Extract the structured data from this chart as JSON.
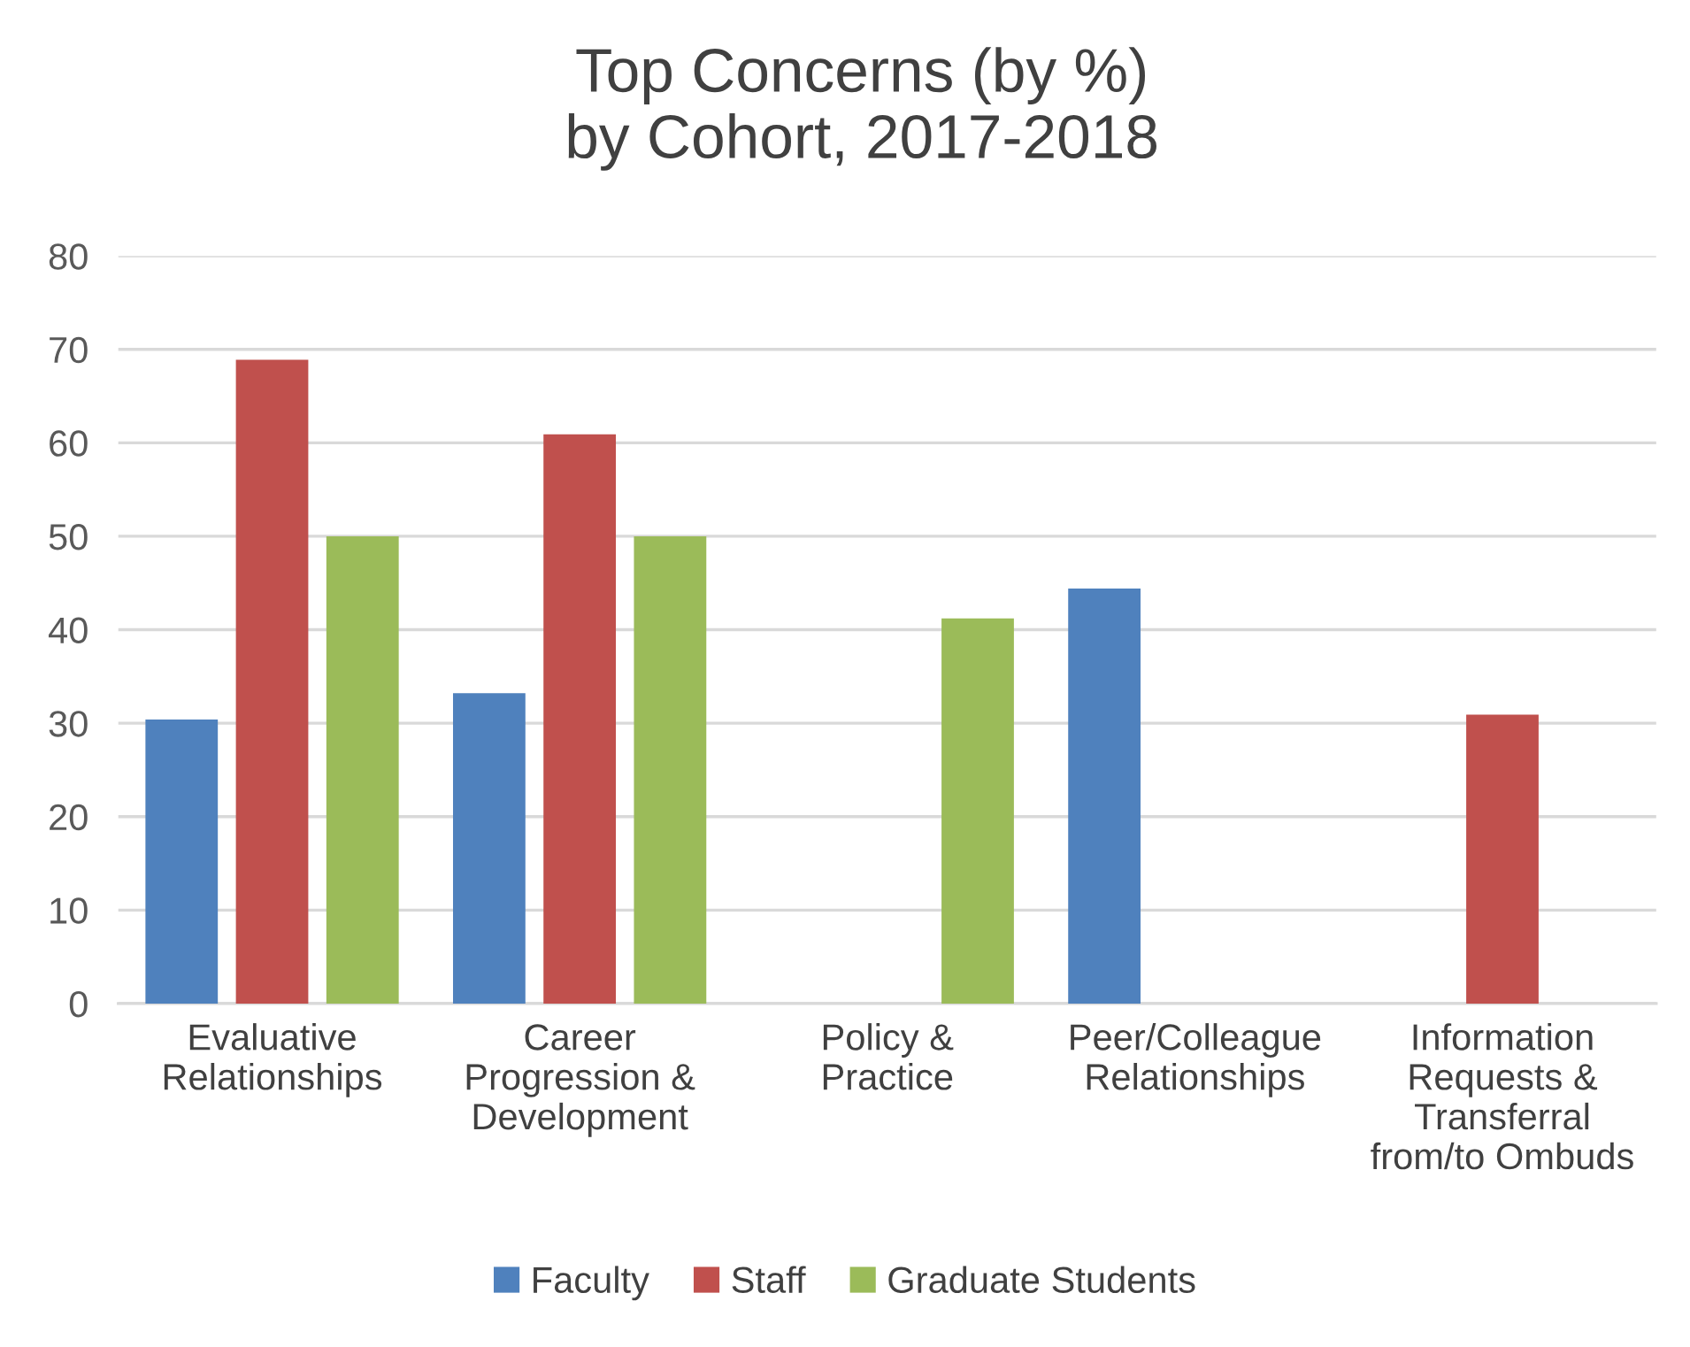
{
  "chart_data": {
    "type": "bar",
    "title": "Top Concerns (by %)\nby Cohort, 2017-2018",
    "categories": [
      "Evaluative\nRelationships",
      "Career\nProgression &\nDevelopment",
      "Policy &\nPractice",
      "Peer/Colleague\nRelationships",
      "Information\nRequests &\nTransferral\nfrom/to Ombuds"
    ],
    "series": [
      {
        "name": "Faculty",
        "color": "#4f81bd",
        "values": [
          30.4,
          33.2,
          null,
          44.4,
          null
        ]
      },
      {
        "name": "Staff",
        "color": "#c0504d",
        "values": [
          68.9,
          60.9,
          null,
          null,
          30.9
        ]
      },
      {
        "name": "Graduate Students",
        "color": "#9bbb59",
        "values": [
          50,
          50,
          41.2,
          null,
          null
        ]
      }
    ],
    "ylim": [
      0,
      80
    ],
    "yticks": [
      0,
      10,
      20,
      30,
      40,
      50,
      60,
      70,
      80
    ],
    "grid": "y",
    "legend": "bottom"
  }
}
